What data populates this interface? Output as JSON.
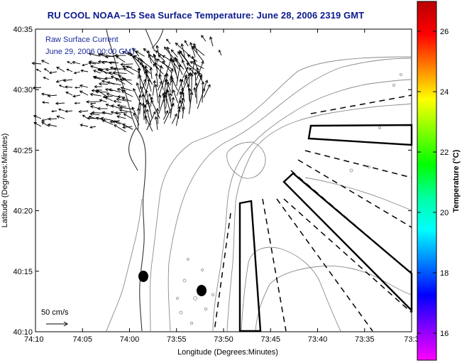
{
  "title": "RU COOL  NOAA–15  Sea Surface Temperature:  June 28, 2006 2319 GMT",
  "overlay": {
    "line1": "Raw Surface Current",
    "line2": "June 29, 2006 00:00 GMT"
  },
  "map": {
    "xlabel": "Longitude (Degrees:Minutes)",
    "ylabel": "Latitude (Degrees:Minutes)",
    "x_ticks": [
      "74:10",
      "74:05",
      "74:00",
      "73:55",
      "73:50",
      "73:45",
      "73:40",
      "73:35",
      "73:3"
    ],
    "y_ticks": [
      "40:35",
      "40:30",
      "40:25",
      "40:20",
      "40:15",
      "40:10"
    ],
    "scale_label": "50 cm/s"
  },
  "colorbar": {
    "label": "Temperature (°C)",
    "ticks": [
      "26",
      "24",
      "22",
      "20",
      "18",
      "16"
    ],
    "colors": [
      "#b80000",
      "#ff0000",
      "#ff8000",
      "#ffff00",
      "#80ff00",
      "#00ff00",
      "#00ffa0",
      "#00ffff",
      "#0080ff",
      "#0000ff",
      "#8000ff",
      "#ff00ff"
    ]
  }
}
